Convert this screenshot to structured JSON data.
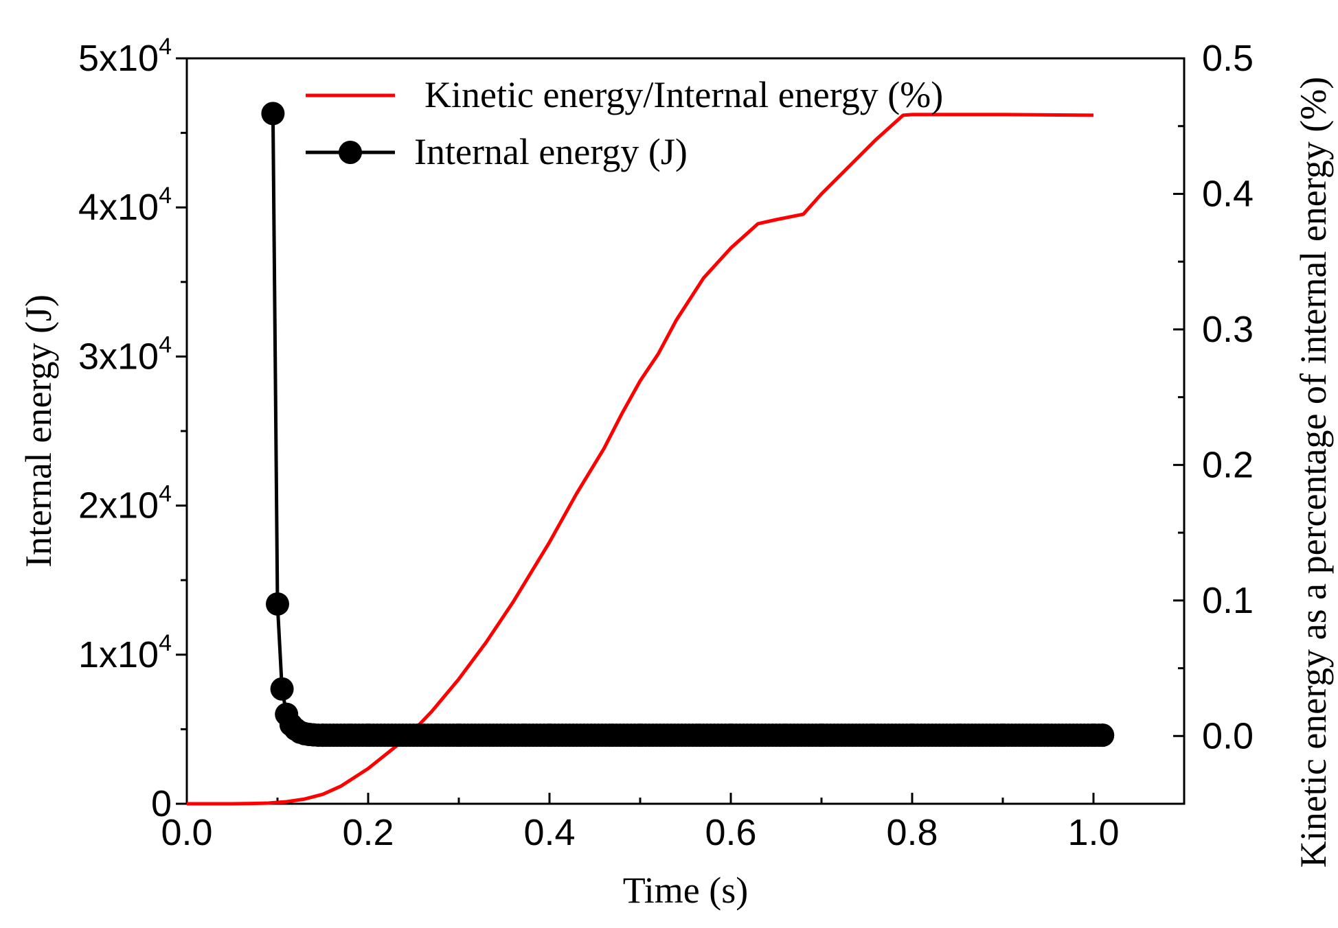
{
  "chart_data": {
    "type": "line",
    "title": "",
    "xlabel": "Time (s)",
    "ylabel_left": "Internal energy (J)",
    "ylabel_right": "Kinetic energy as a percentage of internal energy (%)",
    "xlim": [
      0.0,
      1.1
    ],
    "ylim_left": [
      0,
      50000
    ],
    "ylim_right": [
      -0.05,
      0.5
    ],
    "x_ticks": [
      "0.0",
      "0.2",
      "0.4",
      "0.6",
      "0.8",
      "1.0"
    ],
    "x_tick_values": [
      0.0,
      0.2,
      0.4,
      0.6,
      0.8,
      1.0
    ],
    "y_left_ticks": [
      {
        "value": 0,
        "base": "0",
        "exp": ""
      },
      {
        "value": 10000,
        "base": "1x10",
        "exp": "4"
      },
      {
        "value": 20000,
        "base": "2x10",
        "exp": "4"
      },
      {
        "value": 30000,
        "base": "3x10",
        "exp": "4"
      },
      {
        "value": 40000,
        "base": "4x10",
        "exp": "4"
      },
      {
        "value": 50000,
        "base": "5x10",
        "exp": "4"
      }
    ],
    "y_right_ticks": [
      "0.0",
      "0.1",
      "0.2",
      "0.3",
      "0.4",
      "0.5"
    ],
    "y_right_tick_values": [
      0.0,
      0.1,
      0.2,
      0.3,
      0.4,
      0.5
    ],
    "legend_position": "top",
    "series": [
      {
        "name": "Kinetic energy/Internal energy (%)",
        "axis": "right",
        "color": "#ff0000",
        "marker": "none",
        "x": [
          0.0,
          0.05,
          0.07,
          0.09,
          0.11,
          0.13,
          0.15,
          0.17,
          0.2,
          0.23,
          0.25,
          0.27,
          0.3,
          0.33,
          0.36,
          0.4,
          0.43,
          0.46,
          0.48,
          0.5,
          0.52,
          0.54,
          0.57,
          0.6,
          0.63,
          0.65,
          0.68,
          0.7,
          0.73,
          0.76,
          0.79,
          0.8,
          0.9,
          1.0
        ],
        "y": [
          -0.05,
          -0.05,
          -0.0498,
          -0.0495,
          -0.0485,
          -0.0465,
          -0.043,
          -0.037,
          -0.024,
          -0.008,
          0.004,
          0.018,
          0.042,
          0.069,
          0.099,
          0.143,
          0.179,
          0.212,
          0.238,
          0.262,
          0.282,
          0.307,
          0.338,
          0.36,
          0.378,
          0.381,
          0.385,
          0.4,
          0.42,
          0.44,
          0.458,
          0.4585,
          0.4585,
          0.458
        ]
      },
      {
        "name": "Internal energy (J)",
        "axis": "left",
        "color": "#000000",
        "marker": "circle",
        "x": [
          0.095,
          0.1,
          0.105,
          0.11,
          0.115,
          0.12,
          0.125,
          0.13,
          0.135,
          0.14,
          0.145,
          0.15,
          0.2,
          0.3,
          0.4,
          0.5,
          0.6,
          0.7,
          0.8,
          0.9,
          1.0,
          1.01
        ],
        "y": [
          46300,
          13400,
          7700,
          6000,
          5300,
          5000,
          4800,
          4700,
          4650,
          4620,
          4600,
          4600,
          4600,
          4600,
          4600,
          4600,
          4600,
          4600,
          4600,
          4600,
          4600,
          4600
        ]
      }
    ]
  }
}
